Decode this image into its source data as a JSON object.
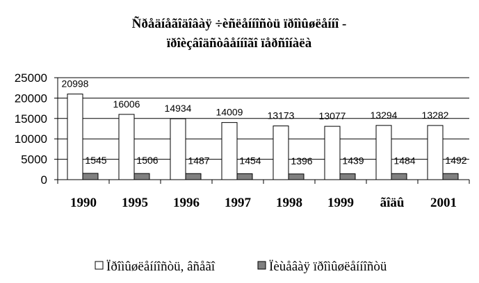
{
  "chart_data": {
    "type": "bar",
    "title_lines": [
      "Ñðåäíåãîäîâàÿ ÷èñëåííîñòü ïðîìûøëåííî -",
      "ïðîèçâîäñòâåííîãî ïåðñîíàëà"
    ],
    "categories": [
      "1990",
      "1995",
      "1996",
      "1997",
      "1998",
      "1999",
      "ãîäû",
      "2001"
    ],
    "series": [
      {
        "name": "Ïðîìûøëåííîñòü, âñåãî",
        "values": [
          20998,
          16006,
          14934,
          14009,
          13173,
          13077,
          13294,
          13282
        ],
        "color": "#ffffff"
      },
      {
        "name": "Ïèùåâàÿ ïðîìûøëåííîñòü",
        "values": [
          1545,
          1506,
          1487,
          1454,
          1396,
          1439,
          1484,
          1492
        ],
        "color": "#808080"
      }
    ],
    "y_ticks": [
      "0",
      "5000",
      "10000",
      "15000",
      "20000",
      "25000"
    ],
    "ylim": [
      0,
      25000
    ],
    "xlabel": "",
    "ylabel": "",
    "grid": "horizontal",
    "legend_position": "bottom"
  }
}
